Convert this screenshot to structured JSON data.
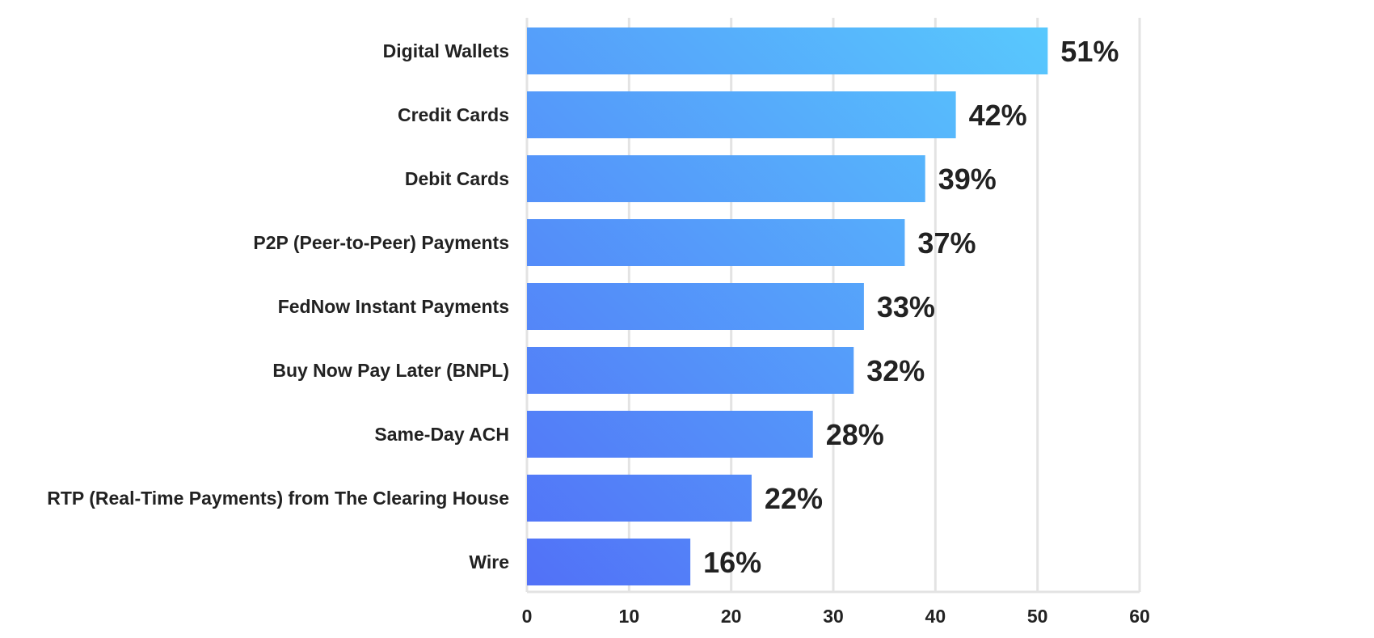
{
  "chart_data": {
    "type": "bar",
    "orientation": "horizontal",
    "categories": [
      "Digital Wallets",
      "Credit Cards",
      "Debit Cards",
      "P2P (Peer-to-Peer) Payments",
      "FedNow Instant Payments",
      "Buy Now Pay Later (BNPL)",
      "Same-Day ACH",
      "RTP (Real-Time Payments) from The Clearing House",
      "Wire"
    ],
    "values": [
      51,
      42,
      39,
      37,
      33,
      32,
      28,
      22,
      16
    ],
    "value_labels": [
      "51%",
      "42%",
      "39%",
      "37%",
      "33%",
      "32%",
      "28%",
      "22%",
      "16%"
    ],
    "x_ticks": [
      "0",
      "10",
      "20",
      "30",
      "40",
      "50",
      "60"
    ],
    "xlim": [
      0,
      60
    ],
    "grid": "vertical",
    "colors": {
      "bar_low": "#5271f7",
      "bar_high": "#58c8fd",
      "grid": "#e3e3e3",
      "text": "#222222"
    }
  }
}
